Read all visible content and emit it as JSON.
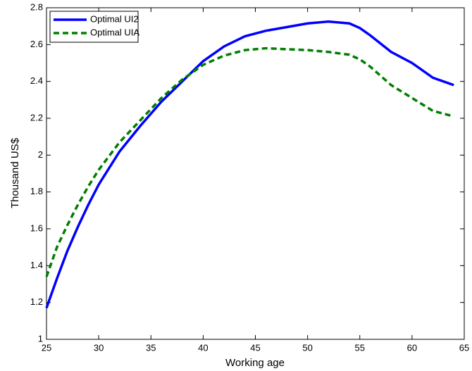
{
  "chart_data": {
    "type": "line",
    "xlabel": "Working age",
    "ylabel": "Thousand US$",
    "x": [
      25,
      26,
      27,
      28,
      29,
      30,
      32,
      34,
      36,
      38,
      40,
      42,
      44,
      46,
      48,
      50,
      52,
      54,
      55,
      56,
      58,
      60,
      62,
      64
    ],
    "series": [
      {
        "name": "Optimal UI2",
        "color": "#0000ff",
        "dash": "solid",
        "values": [
          1.17,
          1.33,
          1.48,
          1.61,
          1.73,
          1.84,
          2.02,
          2.16,
          2.29,
          2.4,
          2.51,
          2.59,
          2.645,
          2.675,
          2.695,
          2.715,
          2.725,
          2.715,
          2.69,
          2.65,
          2.56,
          2.5,
          2.42,
          2.38
        ]
      },
      {
        "name": "Optimal UIA",
        "color": "#007f00",
        "dash": "dashed",
        "values": [
          1.34,
          1.5,
          1.62,
          1.73,
          1.83,
          1.92,
          2.07,
          2.19,
          2.31,
          2.41,
          2.49,
          2.54,
          2.57,
          2.58,
          2.575,
          2.57,
          2.56,
          2.545,
          2.52,
          2.48,
          2.38,
          2.31,
          2.24,
          2.21
        ]
      }
    ],
    "xlim": [
      25,
      65
    ],
    "xticks": [
      25,
      30,
      35,
      40,
      45,
      50,
      55,
      60,
      65
    ],
    "ylim": [
      1,
      2.8
    ],
    "yticks": [
      1,
      1.2,
      1.4,
      1.6,
      1.8,
      2,
      2.2,
      2.4,
      2.6,
      2.8
    ],
    "grid": false,
    "legend": "upper-left"
  }
}
